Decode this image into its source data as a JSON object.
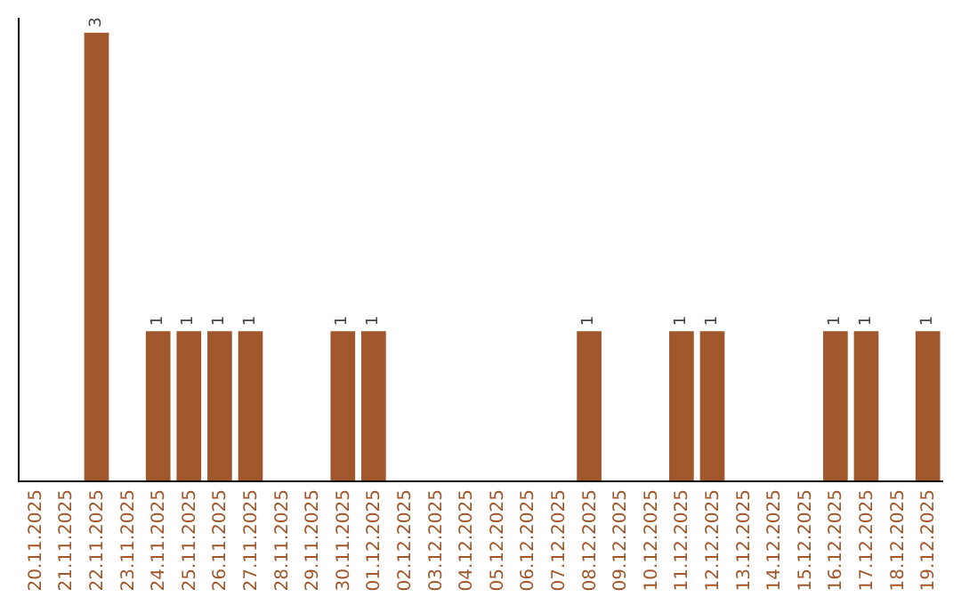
{
  "chart_data": {
    "type": "bar",
    "categories": [
      "20.11.2025",
      "21.11.2025",
      "22.11.2025",
      "23.11.2025",
      "24.11.2025",
      "25.11.2025",
      "26.11.2025",
      "27.11.2025",
      "28.11.2025",
      "29.11.2025",
      "30.11.2025",
      "01.12.2025",
      "02.12.2025",
      "03.12.2025",
      "04.12.2025",
      "05.12.2025",
      "06.12.2025",
      "07.12.2025",
      "08.12.2025",
      "09.12.2025",
      "10.12.2025",
      "11.12.2025",
      "12.12.2025",
      "13.12.2025",
      "14.12.2025",
      "15.12.2025",
      "16.12.2025",
      "17.12.2025",
      "18.12.2025",
      "19.12.2025"
    ],
    "values": [
      0,
      0,
      3,
      0,
      1,
      1,
      1,
      1,
      0,
      0,
      1,
      1,
      0,
      0,
      0,
      0,
      0,
      0,
      1,
      0,
      0,
      1,
      1,
      0,
      0,
      0,
      1,
      1,
      0,
      1
    ],
    "value_labels": [
      null,
      null,
      "3",
      null,
      "1",
      "1",
      "1",
      "1",
      null,
      null,
      "1",
      "1",
      null,
      null,
      null,
      null,
      null,
      null,
      "1",
      null,
      null,
      "1",
      "1",
      null,
      null,
      null,
      "1",
      "1",
      null,
      "1"
    ],
    "color": "#a0572b",
    "ylim": [
      0,
      3.1
    ],
    "grid": false,
    "legend": false
  }
}
